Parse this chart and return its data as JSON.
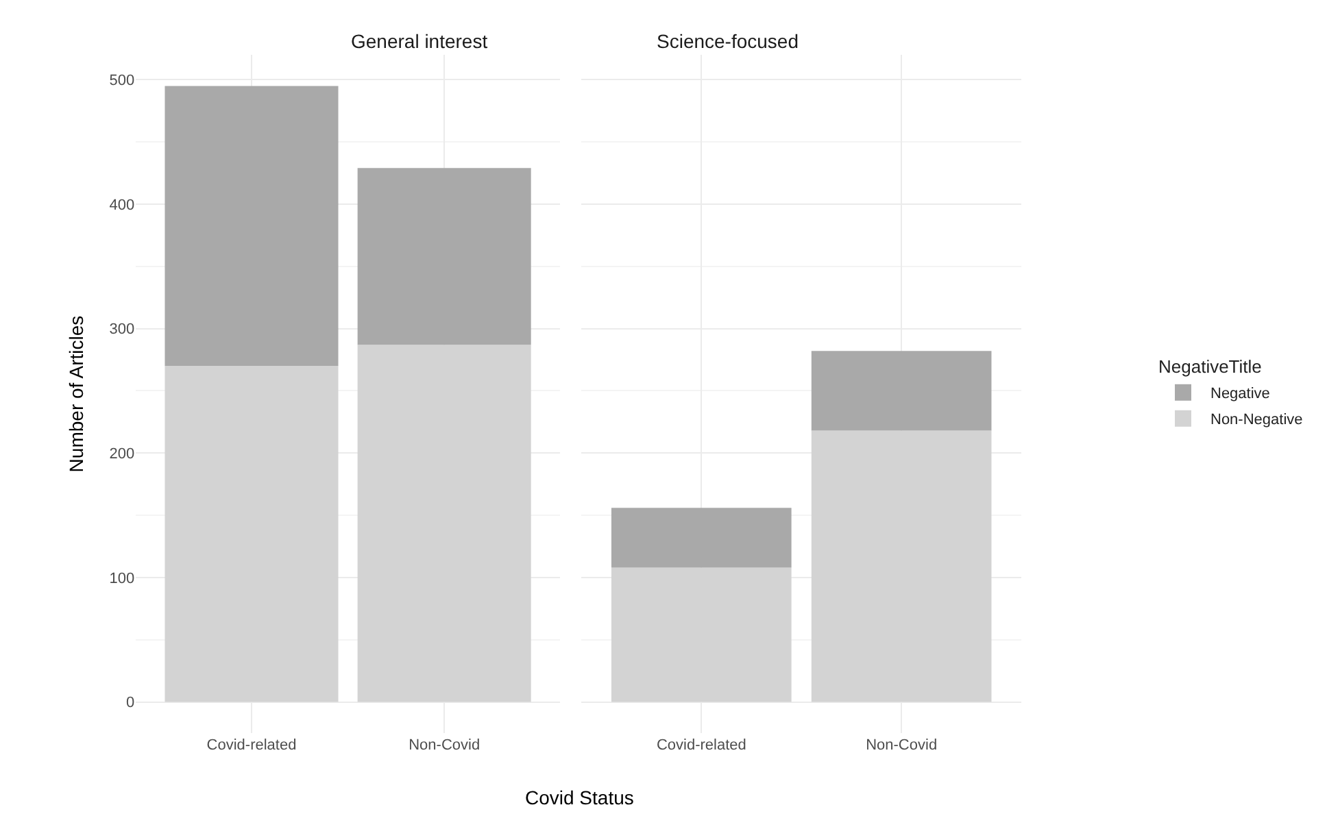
{
  "chart_data": [
    {
      "type": "bar",
      "title": "General interest",
      "xlabel": "Covid Status",
      "ylabel": "Number of Articles",
      "categories": [
        "Covid-related",
        "Non-Covid"
      ],
      "stacked": true,
      "grid": true,
      "ylim": [
        -25,
        520
      ],
      "yticks": [
        0,
        100,
        200,
        300,
        400,
        500
      ],
      "legend": "right",
      "legend_title": "NegativeTitle",
      "series": [
        {
          "name": "Non-Negative",
          "color": "#d3d3d3",
          "values": [
            270,
            287
          ]
        },
        {
          "name": "Negative",
          "color": "#a9a9a9",
          "values": [
            225,
            142
          ]
        }
      ]
    },
    {
      "type": "bar",
      "title": "Science-focused",
      "categories": [
        "Covid-related",
        "Non-Covid"
      ],
      "stacked": true,
      "grid": true,
      "ylim": [
        -25,
        520
      ],
      "yticks": [
        0,
        100,
        200,
        300,
        400,
        500
      ],
      "tick_labels": "x",
      "legend": "right",
      "series": [
        {
          "name": "Non-Negative",
          "color": "#d3d3d3",
          "values": [
            108,
            218
          ]
        },
        {
          "name": "Negative",
          "color": "#a9a9a9",
          "values": [
            48,
            64
          ]
        }
      ]
    }
  ]
}
